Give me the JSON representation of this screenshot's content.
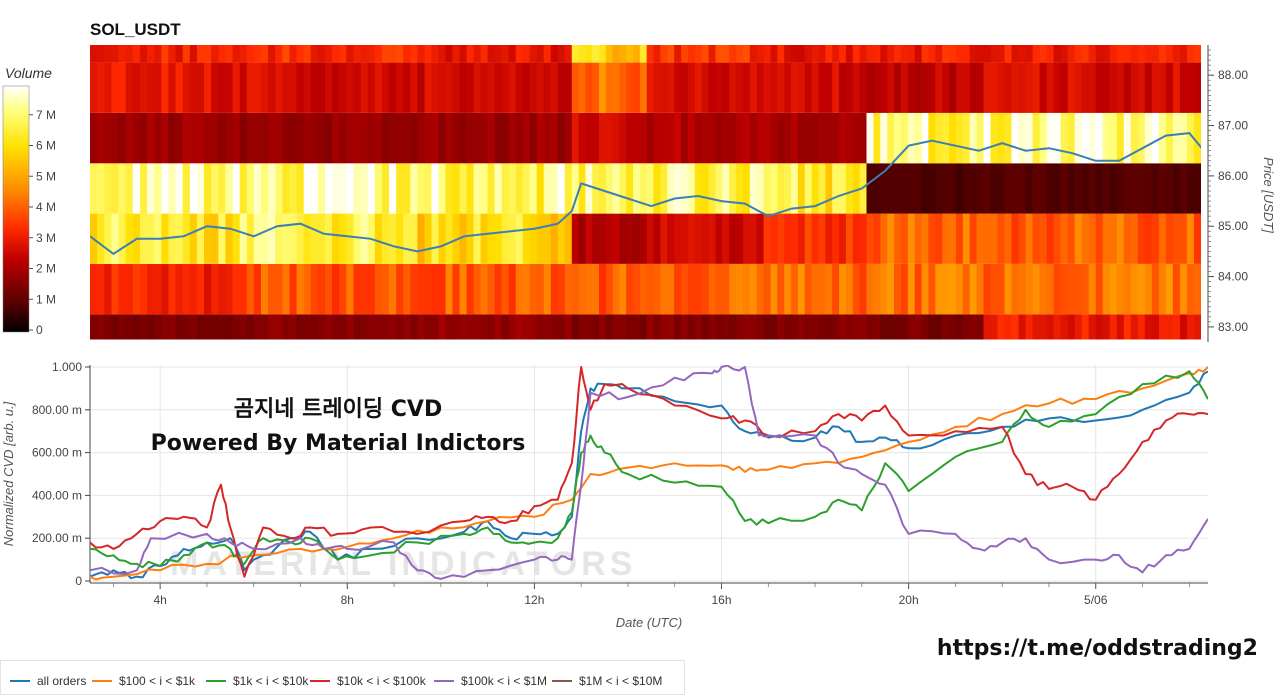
{
  "title": "SOL_USDT",
  "colorbar": {
    "title": "Volume",
    "ticks": [
      "7 M",
      "6 M",
      "5 M",
      "4 M",
      "3 M",
      "2 M",
      "1 M",
      "0"
    ],
    "max": 8
  },
  "overlay_text": {
    "line1": "곰지네 트레이딩 CVD",
    "line2": "Powered By Material Indictors"
  },
  "watermark": "MATERIAL INDICATORS",
  "link_text": "https://t.me/oddstrading2",
  "colors": {
    "all_orders": "#1f77b4",
    "tier_100_1k": "#ff7f0e",
    "tier_1k_10k": "#2ca02c",
    "tier_10k_100k": "#d62728",
    "tier_100k_1m": "#9467bd",
    "tier_1m_10m": "#8c564b",
    "price_line": "#3b7fb5"
  },
  "legend": [
    {
      "label": "all orders",
      "color": "#1f77b4"
    },
    {
      "label": "$100 < i < $1k",
      "color": "#ff7f0e"
    },
    {
      "label": "$1k < i < $10k",
      "color": "#2ca02c"
    },
    {
      "label": "$10k < i < $100k",
      "color": "#d62728"
    },
    {
      "label": "$100k < i < $1M",
      "color": "#9467bd"
    },
    {
      "label": "$1M < i < $10M",
      "color": "#8c564b"
    }
  ],
  "chart_data": [
    {
      "type": "heatmap",
      "title": "SOL_USDT",
      "ylabel": "Price [USDT]",
      "ylim": [
        82.7,
        88.6
      ],
      "yticks": [
        "88.00",
        "87.00",
        "86.00",
        "85.00",
        "84.00",
        "83.00"
      ],
      "x_range_hours": [
        2.5,
        26.4
      ],
      "price_bins": [
        {
          "low": 82.75,
          "high": 83.25
        },
        {
          "low": 83.25,
          "high": 84.25
        },
        {
          "low": 84.25,
          "high": 85.25
        },
        {
          "low": 85.25,
          "high": 86.25
        },
        {
          "low": 86.25,
          "high": 87.25
        },
        {
          "low": 87.25,
          "high": 88.25
        },
        {
          "low": 88.25,
          "high": 88.6
        }
      ],
      "volume_unit": "M",
      "volume_segments": [
        {
          "start": 2.5,
          "end": 5.7,
          "values": [
            1.5,
            3.2,
            6.4,
            7.4,
            1.9,
            2.9,
            3.2
          ]
        },
        {
          "start": 5.7,
          "end": 9.5,
          "values": [
            1.6,
            3.9,
            6.6,
            7.3,
            1.8,
            2.7,
            3.3
          ]
        },
        {
          "start": 9.5,
          "end": 12.8,
          "values": [
            1.8,
            4.0,
            6.1,
            7.0,
            1.9,
            2.6,
            3.0
          ]
        },
        {
          "start": 12.8,
          "end": 14.4,
          "values": [
            1.5,
            4.0,
            2.2,
            6.9,
            2.6,
            4.2,
            5.8
          ]
        },
        {
          "start": 14.4,
          "end": 16.9,
          "values": [
            1.6,
            4.1,
            2.6,
            6.8,
            2.2,
            2.7,
            3.4
          ]
        },
        {
          "start": 16.9,
          "end": 19.1,
          "values": [
            1.5,
            4.2,
            3.4,
            6.5,
            2.1,
            2.6,
            3.0
          ]
        },
        {
          "start": 19.1,
          "end": 21.6,
          "values": [
            1.4,
            4.3,
            4.2,
            0.8,
            7.0,
            2.4,
            3.1
          ]
        },
        {
          "start": 21.6,
          "end": 26.4,
          "values": [
            3.0,
            4.3,
            4.1,
            0.9,
            7.2,
            2.7,
            3.1
          ]
        }
      ],
      "price_line": {
        "x": [
          2.5,
          3.0,
          3.5,
          4.0,
          4.5,
          5.0,
          5.5,
          6.0,
          6.5,
          7.0,
          7.5,
          8.0,
          8.5,
          9.0,
          9.5,
          10.0,
          10.5,
          11.0,
          11.5,
          12.0,
          12.5,
          12.8,
          13.0,
          13.5,
          14.0,
          14.5,
          15.0,
          15.5,
          16.0,
          16.5,
          17.0,
          17.5,
          18.0,
          18.5,
          19.0,
          19.5,
          20.0,
          20.5,
          21.0,
          21.5,
          22.0,
          22.5,
          23.0,
          23.5,
          24.0,
          24.5,
          25.0,
          25.5,
          26.0,
          26.4
        ],
        "y": [
          84.8,
          84.45,
          84.75,
          84.75,
          84.8,
          85.0,
          84.95,
          84.8,
          85.0,
          85.05,
          84.85,
          84.8,
          84.75,
          84.6,
          84.5,
          84.6,
          84.8,
          84.85,
          84.9,
          84.95,
          85.05,
          85.3,
          85.85,
          85.7,
          85.55,
          85.4,
          85.55,
          85.6,
          85.5,
          85.45,
          85.2,
          85.35,
          85.4,
          85.6,
          85.75,
          86.1,
          86.6,
          86.7,
          86.6,
          86.5,
          86.65,
          86.5,
          86.55,
          86.45,
          86.3,
          86.3,
          86.55,
          86.8,
          86.85,
          86.4
        ]
      }
    },
    {
      "type": "line",
      "xlabel": "Date (UTC)",
      "ylabel": "Normalized CVD [arb. u.]",
      "ylim": [
        0,
        1.0
      ],
      "yticks": [
        "1.000",
        "800.00 m",
        "600.00 m",
        "400.00 m",
        "200.00 m",
        "0"
      ],
      "xticks": [
        {
          "label": "4h",
          "value": 4
        },
        {
          "label": "8h",
          "value": 8
        },
        {
          "label": "12h",
          "value": 12
        },
        {
          "label": "16h",
          "value": 16
        },
        {
          "label": "20h",
          "value": 20
        },
        {
          "label": "5/06",
          "value": 24
        }
      ],
      "x_range_hours": [
        2.5,
        26.4
      ],
      "series": [
        {
          "name": "all orders",
          "color": "#1f77b4",
          "x": [
            2.5,
            3.0,
            3.5,
            4.0,
            4.5,
            5.0,
            5.5,
            5.8,
            6.2,
            6.8,
            7.2,
            7.8,
            8.5,
            9.5,
            10.5,
            11.0,
            11.5,
            12.0,
            12.5,
            12.8,
            13.0,
            13.2,
            13.5,
            14.0,
            15.0,
            16.0,
            16.5,
            17.0,
            18.0,
            18.5,
            19.0,
            19.5,
            20.0,
            21.0,
            22.0,
            23.0,
            24.0,
            25.0,
            26.0,
            26.4
          ],
          "y": [
            0.02,
            0.05,
            0.02,
            0.07,
            0.15,
            0.18,
            0.2,
            0.05,
            0.12,
            0.2,
            0.23,
            0.1,
            0.15,
            0.2,
            0.23,
            0.28,
            0.2,
            0.22,
            0.22,
            0.3,
            0.7,
            0.9,
            0.92,
            0.9,
            0.84,
            0.82,
            0.7,
            0.67,
            0.67,
            0.72,
            0.65,
            0.67,
            0.62,
            0.68,
            0.72,
            0.76,
            0.75,
            0.8,
            0.88,
            0.98
          ]
        },
        {
          "name": "$100 < i < $1k",
          "color": "#ff7f0e",
          "x": [
            2.5,
            3.0,
            4.0,
            5.0,
            6.0,
            7.0,
            8.0,
            9.0,
            10.0,
            11.0,
            12.0,
            12.8,
            13.2,
            14.0,
            15.0,
            16.0,
            16.5,
            17.0,
            18.0,
            19.0,
            20.0,
            21.0,
            22.0,
            23.0,
            24.0,
            25.0,
            26.0,
            26.4
          ],
          "y": [
            0.02,
            0.02,
            0.05,
            0.08,
            0.12,
            0.15,
            0.16,
            0.2,
            0.25,
            0.28,
            0.3,
            0.38,
            0.5,
            0.53,
            0.55,
            0.54,
            0.51,
            0.52,
            0.55,
            0.58,
            0.65,
            0.72,
            0.78,
            0.83,
            0.85,
            0.9,
            0.97,
            1.0
          ]
        },
        {
          "name": "$1k < i < $10k",
          "color": "#2ca02c",
          "x": [
            2.5,
            3.0,
            3.5,
            4.0,
            4.5,
            5.0,
            5.5,
            5.8,
            6.2,
            6.8,
            7.2,
            7.8,
            8.5,
            9.5,
            10.5,
            11.0,
            11.5,
            12.0,
            12.5,
            12.8,
            13.0,
            13.2,
            13.5,
            14.0,
            15.0,
            16.0,
            16.5,
            17.0,
            18.0,
            18.5,
            19.0,
            19.5,
            20.0,
            21.0,
            22.0,
            22.5,
            23.0,
            24.0,
            25.0,
            26.0,
            26.4
          ],
          "y": [
            0.15,
            0.12,
            0.08,
            0.07,
            0.12,
            0.18,
            0.15,
            0.08,
            0.2,
            0.18,
            0.2,
            0.1,
            0.12,
            0.18,
            0.22,
            0.25,
            0.18,
            0.18,
            0.2,
            0.32,
            0.6,
            0.68,
            0.6,
            0.5,
            0.46,
            0.44,
            0.28,
            0.27,
            0.3,
            0.38,
            0.33,
            0.55,
            0.42,
            0.58,
            0.65,
            0.8,
            0.72,
            0.78,
            0.92,
            0.98,
            0.85
          ]
        },
        {
          "name": "$10k < i < $100k",
          "color": "#d62728",
          "x": [
            2.5,
            3.0,
            3.5,
            4.0,
            4.5,
            5.0,
            5.3,
            5.5,
            5.8,
            6.2,
            6.8,
            7.2,
            7.8,
            8.5,
            9.5,
            10.5,
            11.0,
            11.5,
            12.0,
            12.5,
            12.8,
            13.0,
            13.2,
            13.5,
            14.0,
            15.0,
            16.0,
            16.5,
            17.0,
            18.0,
            18.5,
            19.0,
            19.5,
            20.0,
            21.0,
            22.0,
            22.5,
            23.0,
            23.5,
            24.0,
            24.5,
            25.0,
            25.5,
            26.0,
            26.4
          ],
          "y": [
            0.18,
            0.15,
            0.22,
            0.28,
            0.3,
            0.25,
            0.45,
            0.25,
            0.02,
            0.25,
            0.2,
            0.25,
            0.22,
            0.25,
            0.22,
            0.28,
            0.3,
            0.28,
            0.35,
            0.38,
            0.55,
            1.0,
            0.8,
            0.92,
            0.9,
            0.82,
            0.76,
            0.75,
            0.68,
            0.7,
            0.78,
            0.75,
            0.82,
            0.68,
            0.7,
            0.72,
            0.5,
            0.43,
            0.44,
            0.38,
            0.5,
            0.65,
            0.75,
            0.78,
            0.78
          ]
        },
        {
          "name": "$100k < i < $1M",
          "color": "#9467bd",
          "x": [
            2.5,
            3.5,
            3.8,
            5.0,
            5.5,
            6.0,
            7.0,
            7.5,
            8.0,
            9.0,
            9.5,
            10.0,
            11.0,
            12.0,
            12.5,
            12.8,
            13.0,
            13.2,
            14.0,
            15.0,
            15.8,
            16.0,
            16.5,
            16.8,
            17.0,
            18.0,
            18.5,
            19.0,
            19.5,
            20.0,
            21.0,
            21.5,
            22.0,
            22.5,
            23.0,
            24.0,
            24.5,
            25.0,
            25.5,
            26.0,
            26.4
          ],
          "y": [
            0.05,
            0.05,
            0.2,
            0.22,
            0.18,
            0.15,
            0.2,
            0.15,
            0.15,
            0.18,
            0.05,
            0.01,
            0.05,
            0.1,
            0.1,
            0.1,
            0.45,
            0.88,
            0.86,
            0.95,
            0.97,
            1.0,
            1.0,
            0.68,
            0.68,
            0.68,
            0.55,
            0.5,
            0.45,
            0.22,
            0.22,
            0.15,
            0.18,
            0.2,
            0.1,
            0.1,
            0.12,
            0.04,
            0.12,
            0.15,
            0.29
          ]
        },
        {
          "name": "$1M < i < $10M",
          "color": "#8c564b",
          "x": [],
          "y": []
        }
      ]
    }
  ]
}
